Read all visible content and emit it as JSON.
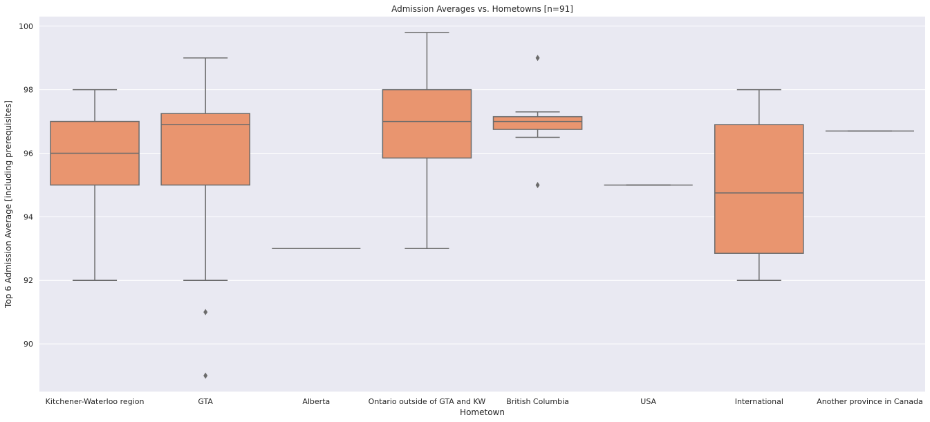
{
  "chart_data": {
    "type": "boxplot",
    "title": "Admission Averages vs. Hometowns [n=91]",
    "xlabel": "Hometown",
    "ylabel": "Top 6 Admission Average [including prerequisites]",
    "ylim": [
      88.5,
      100.3
    ],
    "yticks": [
      90,
      92,
      94,
      96,
      98,
      100
    ],
    "grid": true,
    "colors": {
      "box": "#e9956f",
      "line": "#6b6b6b",
      "background": "#e9e9f2",
      "grid": "#ffffff"
    },
    "categories": [
      "Kitchener-Waterloo region",
      "GTA",
      "Alberta",
      "Ontario outside of GTA and KW",
      "British Columbia",
      "USA",
      "International",
      "Another province in Canada"
    ],
    "boxes": [
      {
        "category": "Kitchener-Waterloo region",
        "whisker_low": 92,
        "q1": 95,
        "median": 96,
        "q3": 97,
        "whisker_high": 98,
        "outliers": []
      },
      {
        "category": "GTA",
        "whisker_low": 92,
        "q1": 95,
        "median": 96.9,
        "q3": 97.25,
        "whisker_high": 99,
        "outliers": [
          91,
          89
        ]
      },
      {
        "category": "Alberta",
        "whisker_low": 93,
        "q1": 93,
        "median": 93,
        "q3": 93,
        "whisker_high": 93,
        "outliers": []
      },
      {
        "category": "Ontario outside of GTA and KW",
        "whisker_low": 93,
        "q1": 95.85,
        "median": 97,
        "q3": 98,
        "whisker_high": 99.8,
        "outliers": []
      },
      {
        "category": "British Columbia",
        "whisker_low": 96.5,
        "q1": 96.75,
        "median": 97,
        "q3": 97.15,
        "whisker_high": 97.3,
        "outliers": [
          99,
          95
        ]
      },
      {
        "category": "USA",
        "whisker_low": 95,
        "q1": 95,
        "median": 95,
        "q3": 95,
        "whisker_high": 95,
        "outliers": []
      },
      {
        "category": "International",
        "whisker_low": 92,
        "q1": 92.85,
        "median": 94.75,
        "q3": 96.9,
        "whisker_high": 98,
        "outliers": []
      },
      {
        "category": "Another province in Canada",
        "whisker_low": 96.7,
        "q1": 96.7,
        "median": 96.7,
        "q3": 96.7,
        "whisker_high": 96.7,
        "outliers": []
      }
    ]
  }
}
